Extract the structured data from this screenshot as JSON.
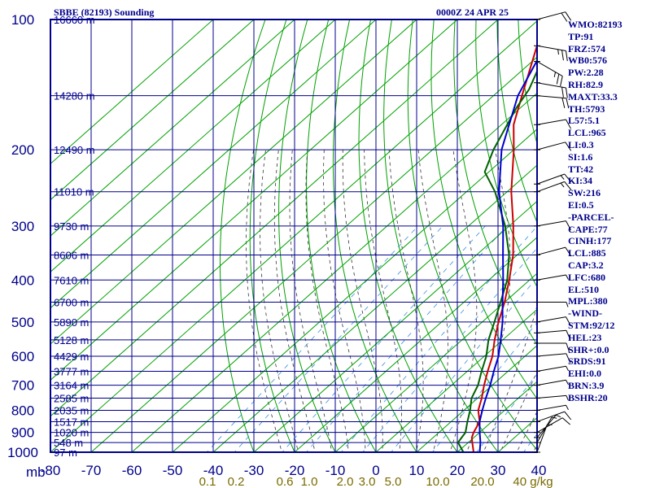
{
  "header": {
    "title": "SBBE (82193) Sounding",
    "datetime": "0000Z 24 APR 25"
  },
  "colors": {
    "frame": "#00008b",
    "dry_adiabat": "#00a000",
    "moist_adiabat": "#333333",
    "mixing_ratio": "#3b8fe0",
    "temperature": "#cc0000",
    "dewpoint": "#006000",
    "parcel": "#0000cc",
    "wind": "#000000"
  },
  "chart_data": {
    "type": "line",
    "title": "SBBE (82193) Sounding",
    "xlabel": "",
    "ylabel": "",
    "pressure_ticks": [
      "100",
      "200",
      "300",
      "400",
      "500",
      "600",
      "700",
      "800",
      "900",
      "1000"
    ],
    "pressure_unit": "mb",
    "pressure_range": [
      100,
      1000
    ],
    "temperature_ticks": [
      "-80",
      "-70",
      "-60",
      "-50",
      "-40",
      "-30",
      "-20",
      "-10",
      "0",
      "10",
      "20",
      "30",
      "40"
    ],
    "temperature_range": [
      -80,
      40
    ],
    "height_labels": [
      {
        "p": 100,
        "label": "16660 m"
      },
      {
        "p": 150,
        "label": "14280 m"
      },
      {
        "p": 200,
        "label": "12490 m"
      },
      {
        "p": 250,
        "label": "11010 m"
      },
      {
        "p": 300,
        "label": "9730 m"
      },
      {
        "p": 350,
        "label": "8606 m"
      },
      {
        "p": 400,
        "label": "7610 m"
      },
      {
        "p": 450,
        "label": "6700 m"
      },
      {
        "p": 500,
        "label": "5890 m"
      },
      {
        "p": 550,
        "label": "5128 m"
      },
      {
        "p": 600,
        "label": "4429 m"
      },
      {
        "p": 650,
        "label": "3777 m"
      },
      {
        "p": 700,
        "label": "3164 m"
      },
      {
        "p": 750,
        "label": "2585 m"
      },
      {
        "p": 800,
        "label": "2035 m"
      },
      {
        "p": 850,
        "label": "1517 m"
      },
      {
        "p": 900,
        "label": "1020 m"
      },
      {
        "p": 950,
        "label": "548 m"
      },
      {
        "p": 1000,
        "label": "97 m"
      }
    ],
    "mixing_ratio_labels": [
      {
        "w": 0.1,
        "label": "0.1"
      },
      {
        "w": 0.2,
        "label": "0.2"
      },
      {
        "w": 0.6,
        "label": "0.6"
      },
      {
        "w": 1.0,
        "label": "1.0"
      },
      {
        "w": 2.0,
        "label": "2.0"
      },
      {
        "w": 3.0,
        "label": "3.0"
      },
      {
        "w": 5.0,
        "label": "5.0"
      },
      {
        "w": 10.0,
        "label": "10.0"
      },
      {
        "w": 20.0,
        "label": "20.0"
      },
      {
        "w": 40.0,
        "label": "40 g/kg"
      }
    ],
    "series": [
      {
        "key": "temperature",
        "values": [
          [
            1010,
            25.5
          ],
          [
            1000,
            24.0
          ],
          [
            950,
            21.0
          ],
          [
            925,
            19.5
          ],
          [
            900,
            18.5
          ],
          [
            850,
            17.0
          ],
          [
            800,
            13.5
          ],
          [
            750,
            11.0
          ],
          [
            700,
            8.0
          ],
          [
            650,
            5.0
          ],
          [
            600,
            2.0
          ],
          [
            550,
            -2.0
          ],
          [
            500,
            -6.0
          ],
          [
            450,
            -10.0
          ],
          [
            400,
            -15.0
          ],
          [
            350,
            -21.0
          ],
          [
            300,
            -29.0
          ],
          [
            250,
            -39.0
          ],
          [
            200,
            -50.0
          ],
          [
            175,
            -57.0
          ],
          [
            150,
            -63.0
          ],
          [
            135,
            -67.0
          ],
          [
            100,
            -78.5
          ]
        ]
      },
      {
        "key": "dewpoint",
        "values": [
          [
            1010,
            23.5
          ],
          [
            1000,
            21.5
          ],
          [
            950,
            17.5
          ],
          [
            925,
            17.0
          ],
          [
            900,
            16.5
          ],
          [
            850,
            14.0
          ],
          [
            800,
            11.5
          ],
          [
            750,
            8.5
          ],
          [
            700,
            6.5
          ],
          [
            650,
            3.5
          ],
          [
            600,
            0.5
          ],
          [
            550,
            -3.5
          ],
          [
            500,
            -7.0
          ],
          [
            450,
            -11.0
          ],
          [
            400,
            -15.5
          ],
          [
            350,
            -22.0
          ],
          [
            300,
            -31.0
          ],
          [
            250,
            -43.0
          ],
          [
            225,
            -51.0
          ],
          [
            200,
            -55.0
          ],
          [
            160,
            -61.0
          ],
          [
            145,
            -63.0
          ],
          [
            120,
            -69.0
          ]
        ]
      },
      {
        "key": "parcel",
        "values": [
          [
            1010,
            26.0
          ],
          [
            1000,
            25.5
          ],
          [
            950,
            23.0
          ],
          [
            900,
            20.0
          ],
          [
            850,
            17.0
          ],
          [
            800,
            14.5
          ],
          [
            750,
            12.0
          ],
          [
            700,
            9.5
          ],
          [
            650,
            6.5
          ],
          [
            600,
            3.5
          ],
          [
            550,
            -0.5
          ],
          [
            500,
            -5.0
          ],
          [
            450,
            -10.5
          ],
          [
            400,
            -16.5
          ],
          [
            350,
            -23.5
          ],
          [
            300,
            -31.5
          ],
          [
            250,
            -42.0
          ],
          [
            200,
            -53.0
          ],
          [
            150,
            -64.0
          ],
          [
            120,
            -70.0
          ]
        ]
      }
    ],
    "wind_barbs": [
      {
        "p": 100,
        "dir": 75,
        "spd": 20
      },
      {
        "p": 115,
        "dir": 100,
        "spd": 25
      },
      {
        "p": 125,
        "dir": 120,
        "spd": 25
      },
      {
        "p": 140,
        "dir": 100,
        "spd": 20
      },
      {
        "p": 150,
        "dir": 95,
        "spd": 20
      },
      {
        "p": 175,
        "dir": 80,
        "spd": 10
      },
      {
        "p": 200,
        "dir": 75,
        "spd": 10
      },
      {
        "p": 240,
        "dir": 70,
        "spd": 15
      },
      {
        "p": 250,
        "dir": 70,
        "spd": 15
      },
      {
        "p": 300,
        "dir": 80,
        "spd": 10
      },
      {
        "p": 350,
        "dir": 75,
        "spd": 10
      },
      {
        "p": 400,
        "dir": 80,
        "spd": 5
      },
      {
        "p": 450,
        "dir": 90,
        "spd": 5
      },
      {
        "p": 500,
        "dir": 80,
        "spd": 10
      },
      {
        "p": 530,
        "dir": 85,
        "spd": 10
      },
      {
        "p": 560,
        "dir": 90,
        "spd": 10
      },
      {
        "p": 600,
        "dir": 85,
        "spd": 10
      },
      {
        "p": 650,
        "dir": 80,
        "spd": 5
      },
      {
        "p": 700,
        "dir": 80,
        "spd": 5
      },
      {
        "p": 750,
        "dir": 85,
        "spd": 5
      },
      {
        "p": 800,
        "dir": 80,
        "spd": 5
      },
      {
        "p": 850,
        "dir": 70,
        "spd": 10
      },
      {
        "p": 900,
        "dir": 60,
        "spd": 10
      },
      {
        "p": 925,
        "dir": 40,
        "spd": 5
      },
      {
        "p": 950,
        "dir": 30,
        "spd": 5
      },
      {
        "p": 1000,
        "dir": 20,
        "spd": 5
      }
    ]
  },
  "indices": [
    "WMO:82193",
    "TP:91",
    "FRZ:574",
    "WB0:576",
    "PW:2.28",
    "RH:82.9",
    "MAXT:33.3",
    "TH:5793",
    "L57:5.1",
    "LCL:965",
    "LI:0.3",
    "SI:1.6",
    "TT:42",
    "KI:34",
    "SW:216",
    "EI:0.5",
    "-PARCEL-",
    "CAPE:77",
    "CINH:177",
    "LCL:885",
    "CAP:3.2",
    "LFC:680",
    "EL:510",
    "MPL:380",
    "-WIND-",
    "STM:92/12",
    "HEL:23",
    "SHR+:0.0",
    "SRDS:91",
    "EHI:0.0",
    "BRN:3.9",
    "BSHR:20"
  ]
}
